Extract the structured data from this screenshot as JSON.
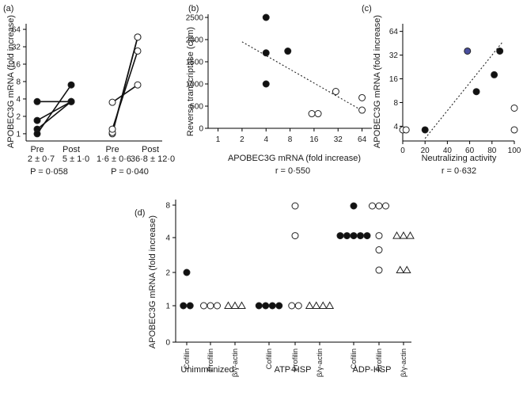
{
  "panels": {
    "a": "(a)",
    "b": "(b)",
    "c": "(c)",
    "d": "(d)"
  },
  "chart_data": [
    {
      "id": "a",
      "type": "line",
      "ylabel": "APOBEC3G mRNA (fold increase)",
      "scale": "log2",
      "yticks": [
        "1",
        "2",
        "4",
        "8",
        "16",
        "32",
        "64"
      ],
      "ylim": [
        0.75,
        80
      ],
      "xticks": [
        "Pre",
        "Post",
        "Pre",
        "Post"
      ],
      "stats": [
        {
          "line1": "2 ± 0·7",
          "line2": "5 ± 1·0",
          "p": "P = 0·058"
        },
        {
          "line1": "1·6 ± 0·6",
          "line2": "36·8 ± 12·0",
          "p": "P = 0·040"
        }
      ],
      "groups": [
        {
          "fill": "filled",
          "pairs": [
            [
              3.6,
              3.6
            ],
            [
              1.7,
              3.6
            ],
            [
              1.2,
              3.6
            ],
            [
              1.0,
              7.0
            ]
          ]
        },
        {
          "fill": "open",
          "pairs": [
            [
              1.0,
              47
            ],
            [
              1.05,
              47
            ],
            [
              1.2,
              27
            ],
            [
              3.5,
              7.0
            ]
          ]
        }
      ]
    },
    {
      "id": "b",
      "type": "scatter",
      "ylabel": "Reverse transcriptase (cpm)",
      "xlabel": "APOBEC3G mRNA (fold increase)",
      "xscale": "log2",
      "xticks": [
        "1",
        "2",
        "4",
        "8",
        "16",
        "32",
        "64"
      ],
      "xlim": [
        0.75,
        85
      ],
      "yticks": [
        "0",
        "500",
        "1000",
        "1500",
        "2000",
        "2500"
      ],
      "ylim": [
        0,
        2500
      ],
      "note": "r = 0·550",
      "points": [
        {
          "x": 4,
          "y": 2500,
          "fill": "filled"
        },
        {
          "x": 4,
          "y": 1700,
          "fill": "filled"
        },
        {
          "x": 4,
          "y": 1000,
          "fill": "filled"
        },
        {
          "x": 7.5,
          "y": 1740,
          "fill": "filled"
        },
        {
          "x": 15,
          "y": 330,
          "fill": "open"
        },
        {
          "x": 18,
          "y": 330,
          "fill": "open"
        },
        {
          "x": 30,
          "y": 830,
          "fill": "open"
        },
        {
          "x": 64,
          "y": 690,
          "fill": "open"
        },
        {
          "x": 64,
          "y": 410,
          "fill": "open"
        }
      ],
      "trend": [
        [
          2,
          1950
        ],
        [
          64,
          400
        ]
      ]
    },
    {
      "id": "c",
      "type": "scatter",
      "ylabel": "APOBEC3G mRNA (fold increase)",
      "xlabel": "Neutralizing activity",
      "yscale": "log2",
      "yticks": [
        "4",
        "8",
        "16",
        "32",
        "64"
      ],
      "ylim": [
        2.6,
        80
      ],
      "xticks": [
        "0",
        "20",
        "40",
        "60",
        "80",
        "100"
      ],
      "xlim": [
        0,
        100
      ],
      "note": "r = 0·632",
      "points": [
        {
          "x": 0,
          "y": 3.6,
          "fill": "open"
        },
        {
          "x": 3,
          "y": 3.6,
          "fill": "open"
        },
        {
          "x": 20,
          "y": 3.6,
          "fill": "filled"
        },
        {
          "x": 58,
          "y": 36,
          "fill": "blue"
        },
        {
          "x": 66,
          "y": 11,
          "fill": "filled"
        },
        {
          "x": 82,
          "y": 18,
          "fill": "filled"
        },
        {
          "x": 87,
          "y": 36,
          "fill": "filled"
        },
        {
          "x": 100,
          "y": 6.8,
          "fill": "open"
        },
        {
          "x": 100,
          "y": 3.6,
          "fill": "open"
        }
      ],
      "trend": [
        [
          20,
          2.8
        ],
        [
          90,
          48
        ]
      ]
    },
    {
      "id": "d",
      "type": "scatter",
      "ylabel": "APOBEC3G mRNA (fold increase)",
      "yscale": "log2",
      "yticks": [
        "0",
        "1",
        "2",
        "4",
        "8"
      ],
      "groups": [
        "Unimmunized",
        "ATP-HSP",
        "ADP-HSP"
      ],
      "categories": [
        "Cofilin",
        "Profilin",
        "β/γ-actin"
      ],
      "markers": [
        "filled-circle",
        "open-circle",
        "open-triangle"
      ],
      "points": [
        {
          "g": 0,
          "c": 0,
          "y": 2,
          "n": 1
        },
        {
          "g": 0,
          "c": 0,
          "y": 1,
          "n": 2
        },
        {
          "g": 0,
          "c": 1,
          "y": 1,
          "n": 3
        },
        {
          "g": 0,
          "c": 2,
          "y": 1,
          "n": 3
        },
        {
          "g": 1,
          "c": 0,
          "y": 1,
          "n": 4
        },
        {
          "g": 1,
          "c": 1,
          "y": 8,
          "n": 1
        },
        {
          "g": 1,
          "c": 1,
          "y": 4.3,
          "n": 1
        },
        {
          "g": 1,
          "c": 1,
          "y": 1,
          "n": 2
        },
        {
          "g": 1,
          "c": 2,
          "y": 1,
          "n": 4
        },
        {
          "g": 2,
          "c": 0,
          "y": 8,
          "n": 1
        },
        {
          "g": 2,
          "c": 0,
          "y": 4.3,
          "n": 5
        },
        {
          "g": 2,
          "c": 1,
          "y": 8,
          "n": 3
        },
        {
          "g": 2,
          "c": 1,
          "y": 4.3,
          "n": 1
        },
        {
          "g": 2,
          "c": 1,
          "y": 3.2,
          "n": 1
        },
        {
          "g": 2,
          "c": 1,
          "y": 2.1,
          "n": 1
        },
        {
          "g": 2,
          "c": 2,
          "y": 4.3,
          "n": 3
        },
        {
          "g": 2,
          "c": 2,
          "y": 2.1,
          "n": 2
        }
      ]
    }
  ]
}
